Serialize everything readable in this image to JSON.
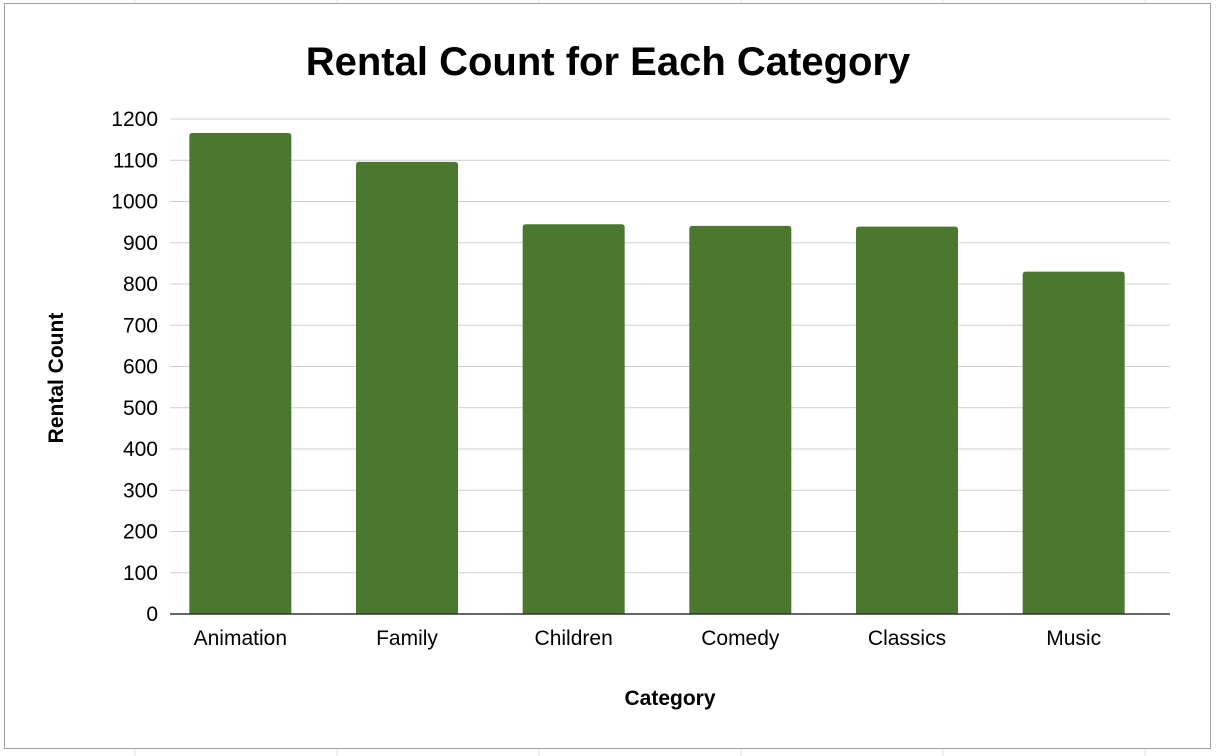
{
  "chart_data": {
    "type": "bar",
    "title": "Rental Count for Each Category",
    "xlabel": "Category",
    "ylabel": "Rental Count",
    "categories": [
      "Animation",
      "Family",
      "Children",
      "Comedy",
      "Classics",
      "Music"
    ],
    "values": [
      1166,
      1096,
      945,
      941,
      939,
      830
    ],
    "ylim": [
      0,
      1200
    ],
    "yticks": [
      0,
      100,
      200,
      300,
      400,
      500,
      600,
      700,
      800,
      900,
      1000,
      1100,
      1200
    ],
    "grid": true,
    "legend": "none",
    "bar_color": "#4a782f"
  }
}
